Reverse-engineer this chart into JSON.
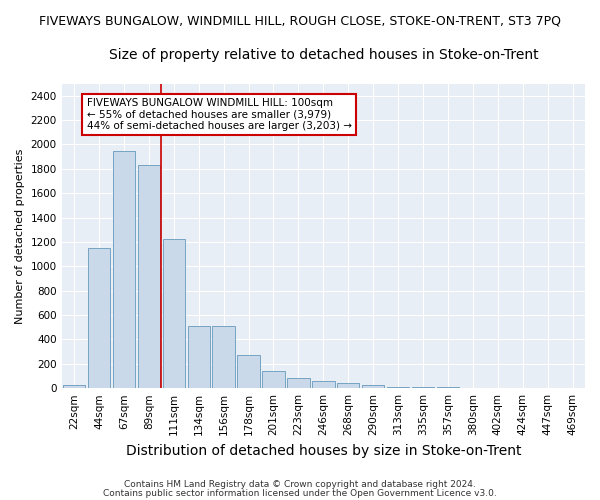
{
  "title": "FIVEWAYS BUNGALOW, WINDMILL HILL, ROUGH CLOSE, STOKE-ON-TRENT, ST3 7PQ",
  "subtitle": "Size of property relative to detached houses in Stoke-on-Trent",
  "xlabel": "Distribution of detached houses by size in Stoke-on-Trent",
  "ylabel": "Number of detached properties",
  "categories": [
    "22sqm",
    "44sqm",
    "67sqm",
    "89sqm",
    "111sqm",
    "134sqm",
    "156sqm",
    "178sqm",
    "201sqm",
    "223sqm",
    "246sqm",
    "268sqm",
    "290sqm",
    "313sqm",
    "335sqm",
    "357sqm",
    "380sqm",
    "402sqm",
    "424sqm",
    "447sqm",
    "469sqm"
  ],
  "values": [
    30,
    1150,
    1950,
    1830,
    1220,
    510,
    510,
    270,
    140,
    80,
    55,
    40,
    30,
    10,
    8,
    6,
    5,
    4,
    3,
    3,
    3
  ],
  "bar_color": "#c9d9ea",
  "bar_edge_color": "#6699bb",
  "vline_x": 3.5,
  "vline_color": "#cc0000",
  "annotation_text": "FIVEWAYS BUNGALOW WINDMILL HILL: 100sqm\n← 55% of detached houses are smaller (3,979)\n44% of semi-detached houses are larger (3,203) →",
  "annotation_box_color": "#ffffff",
  "annotation_border_color": "#cc0000",
  "ylim": [
    0,
    2500
  ],
  "yticks": [
    0,
    200,
    400,
    600,
    800,
    1000,
    1200,
    1400,
    1600,
    1800,
    2000,
    2200,
    2400
  ],
  "footnote1": "Contains HM Land Registry data © Crown copyright and database right 2024.",
  "footnote2": "Contains public sector information licensed under the Open Government Licence v3.0.",
  "fig_bg_color": "#ffffff",
  "plot_bg_color": "#e8eef5",
  "grid_color": "#ffffff",
  "title_fontsize": 9,
  "subtitle_fontsize": 10,
  "xlabel_fontsize": 10,
  "ylabel_fontsize": 8,
  "tick_fontsize": 7.5,
  "annot_fontsize": 7.5,
  "footnote_fontsize": 6.5
}
